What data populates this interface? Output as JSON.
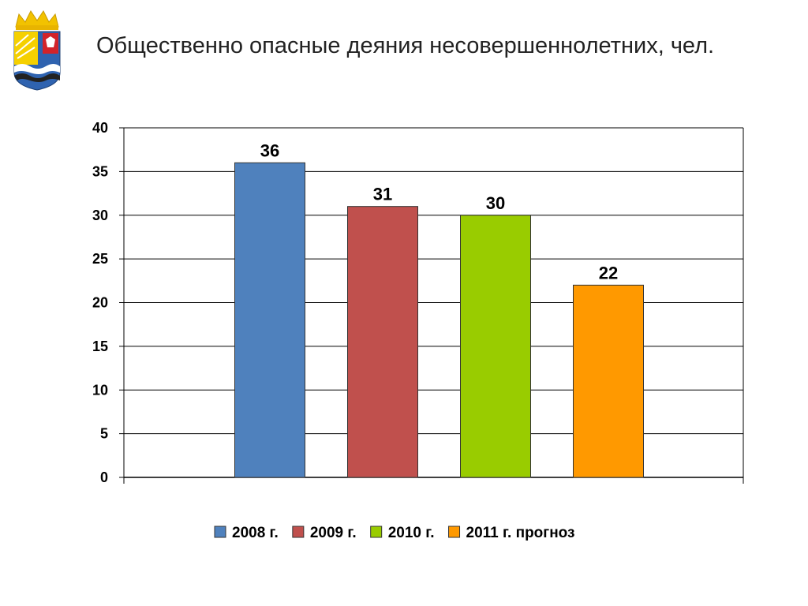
{
  "title": "Общественно опасные деяния несовершеннолетних, чел.",
  "emblem": {
    "icon": "coat-of-arms-icon"
  },
  "chart_data": {
    "type": "bar",
    "title": "",
    "xlabel": "",
    "ylabel": "",
    "ylim": [
      0,
      40
    ],
    "y_ticks": [
      0,
      5,
      10,
      15,
      20,
      25,
      30,
      35,
      40
    ],
    "grid": true,
    "legend_position": "bottom",
    "series": [
      {
        "name": "2008 г.",
        "values": [
          36
        ],
        "color": "#4F81BD"
      },
      {
        "name": "2009 г.",
        "values": [
          31
        ],
        "color": "#C0504D"
      },
      {
        "name": "2010 г.",
        "values": [
          30
        ],
        "color": "#99CC00"
      },
      {
        "name": "2011 г. прогноз",
        "values": [
          22
        ],
        "color": "#FF9900"
      }
    ]
  }
}
